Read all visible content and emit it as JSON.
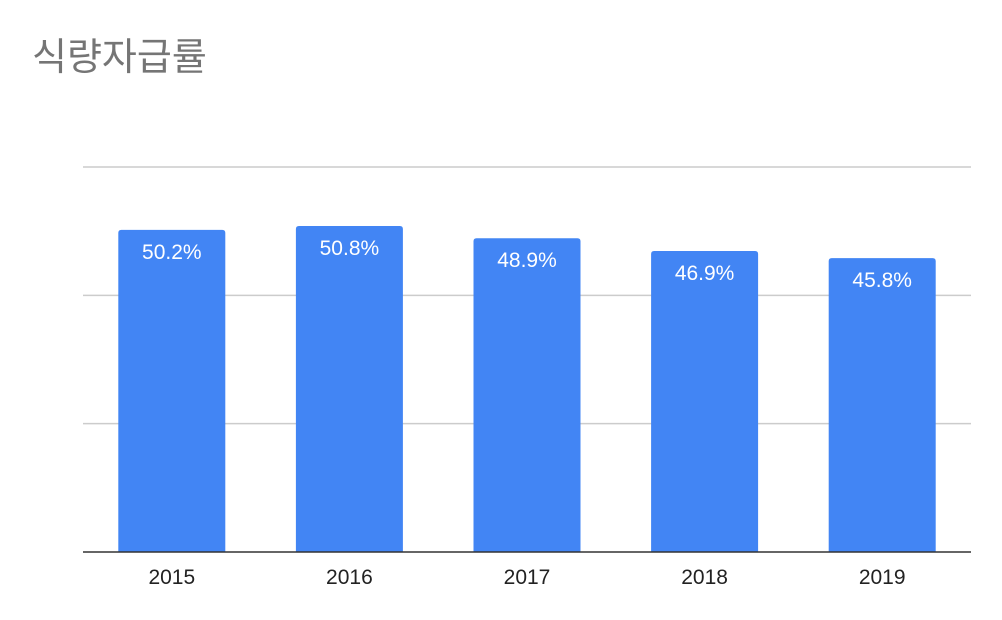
{
  "chart_data": {
    "type": "bar",
    "title": "식량자급률",
    "categories": [
      "2015",
      "2016",
      "2017",
      "2018",
      "2019"
    ],
    "values": [
      50.2,
      50.8,
      48.9,
      46.9,
      45.8
    ],
    "data_labels": [
      "50.2%",
      "50.8%",
      "48.9%",
      "46.9%",
      "45.8%"
    ],
    "ylim": [
      0,
      60
    ],
    "gridlines": [
      20,
      40,
      60
    ],
    "grid": true,
    "xlabel": "",
    "ylabel": "",
    "bar_color": "#4285f4"
  }
}
